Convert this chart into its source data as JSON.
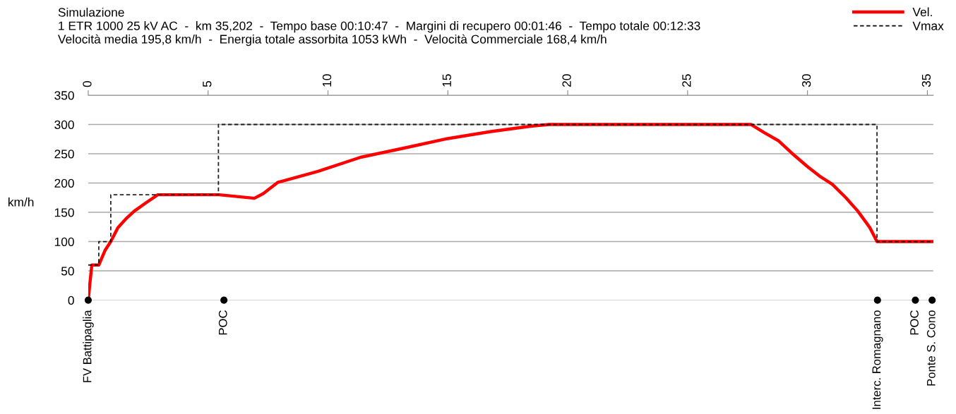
{
  "chart_data": {
    "type": "line",
    "title": "Simulazione",
    "subtitle": "1 ETR 1000 25 kV AC  -  km 35,202  -  Tempo base 00:10:47  -  Margini di recupero 00:01:46  -  Tempo totale 00:12:33\nVelocità media 195,8 km/h  -  Energia totale assorbita 1053 kWh  -  Velocità Commerciale 168,4 km/h",
    "ylabel": "km/h",
    "xlim": [
      0,
      35.25
    ],
    "xticks": [
      0,
      5,
      10,
      15,
      20,
      25,
      30,
      35
    ],
    "ylim": [
      0,
      350
    ],
    "yticks": [
      0,
      50,
      100,
      150,
      200,
      250,
      300,
      350
    ],
    "grid": "y",
    "legend": "top right",
    "series": [
      {
        "name": "Vel.",
        "type": "line",
        "color": "#ff0000",
        "line_style": "solid",
        "x": [
          0,
          0.06,
          0.15,
          0.44,
          0.7,
          0.94,
          1.24,
          1.6,
          1.92,
          2.4,
          2.9,
          5.46,
          6.2,
          6.93,
          7.3,
          7.9,
          9.59,
          11.36,
          13.2,
          15.0,
          16.8,
          18.44,
          19.23,
          27.65,
          28.2,
          28.8,
          29.35,
          30.0,
          30.5,
          31.03,
          31.6,
          32.1,
          32.6,
          32.9,
          35.25
        ],
        "values": [
          0,
          25,
          60,
          60,
          85,
          100,
          124,
          140,
          152,
          166,
          180,
          180,
          177,
          174,
          182,
          201,
          220,
          244,
          260,
          276,
          288,
          297,
          300,
          300,
          286,
          272,
          251,
          228,
          212,
          198,
          175,
          152,
          124,
          100,
          100
        ]
      },
      {
        "name": "Vmax",
        "type": "step",
        "color": "#000000",
        "line_style": "dashed",
        "x": [
          0,
          0.44,
          0.44,
          0.94,
          0.94,
          5.43,
          5.43,
          32.9,
          32.9,
          35.25
        ],
        "values": [
          60,
          60,
          100,
          100,
          180,
          180,
          300,
          300,
          100,
          100
        ]
      },
      {
        "type": "scatter",
        "color": "#000000",
        "marker": "circle",
        "x": [
          0,
          5.66,
          32.92,
          34.5,
          35.2
        ],
        "values": [
          0,
          0,
          0,
          0,
          0
        ]
      }
    ],
    "annotations": [
      {
        "text": "FV Battipaglia",
        "x": 0,
        "y": 0
      },
      {
        "text": "POC",
        "x": 5.66,
        "y": 0
      },
      {
        "text": "Interc. Romagnano",
        "x": 32.92,
        "y": 0
      },
      {
        "text": "POC",
        "x": 34.5,
        "y": 0
      },
      {
        "text": "Ponte S. Cono",
        "x": 35.2,
        "y": 0
      }
    ]
  }
}
